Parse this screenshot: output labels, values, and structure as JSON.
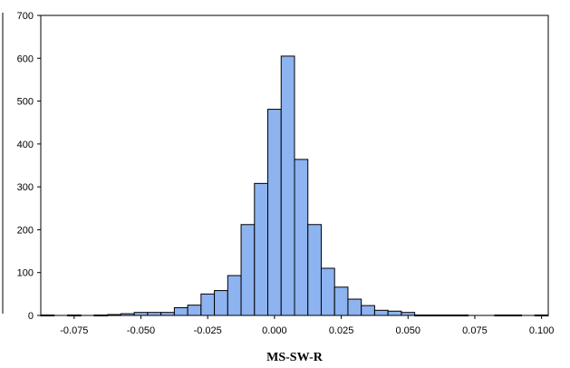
{
  "chart_data": {
    "type": "bar",
    "title": "",
    "xlabel": "MS-SW-R",
    "ylabel": "",
    "xlim": [
      -0.0875,
      0.1025
    ],
    "ylim": [
      0,
      700
    ],
    "bin_width": 0.005,
    "bar_color": "#8db3f0",
    "x_ticks": [
      "-0.075",
      "-0.050",
      "-0.025",
      "0.000",
      "0.025",
      "0.050",
      "0.075",
      "0.100"
    ],
    "x_tick_values": [
      -0.075,
      -0.05,
      -0.025,
      0.0,
      0.025,
      0.05,
      0.075,
      0.1
    ],
    "y_ticks": [
      "0",
      "100",
      "200",
      "300",
      "400",
      "500",
      "600",
      "700"
    ],
    "y_tick_values": [
      0,
      100,
      200,
      300,
      400,
      500,
      600,
      700
    ],
    "bins": [
      {
        "start": -0.0875,
        "value": 1
      },
      {
        "start": -0.0825,
        "value": 0
      },
      {
        "start": -0.0775,
        "value": 1
      },
      {
        "start": -0.0725,
        "value": 0
      },
      {
        "start": -0.0675,
        "value": 1
      },
      {
        "start": -0.0625,
        "value": 2
      },
      {
        "start": -0.0575,
        "value": 4
      },
      {
        "start": -0.0525,
        "value": 7
      },
      {
        "start": -0.0475,
        "value": 7
      },
      {
        "start": -0.0425,
        "value": 7
      },
      {
        "start": -0.0375,
        "value": 18
      },
      {
        "start": -0.0325,
        "value": 24
      },
      {
        "start": -0.0275,
        "value": 50
      },
      {
        "start": -0.0225,
        "value": 58
      },
      {
        "start": -0.0175,
        "value": 93
      },
      {
        "start": -0.0125,
        "value": 212
      },
      {
        "start": -0.0075,
        "value": 308
      },
      {
        "start": -0.0025,
        "value": 481
      },
      {
        "start": 0.0025,
        "value": 605
      },
      {
        "start": 0.0075,
        "value": 364
      },
      {
        "start": 0.0125,
        "value": 212
      },
      {
        "start": 0.0175,
        "value": 110
      },
      {
        "start": 0.0225,
        "value": 66
      },
      {
        "start": 0.0275,
        "value": 38
      },
      {
        "start": 0.0325,
        "value": 23
      },
      {
        "start": 0.0375,
        "value": 12
      },
      {
        "start": 0.0425,
        "value": 10
      },
      {
        "start": 0.0475,
        "value": 7
      },
      {
        "start": 0.0525,
        "value": 1
      },
      {
        "start": 0.0575,
        "value": 1
      },
      {
        "start": 0.0625,
        "value": 1
      },
      {
        "start": 0.0675,
        "value": 1
      },
      {
        "start": 0.0725,
        "value": 0
      },
      {
        "start": 0.0775,
        "value": 0
      },
      {
        "start": 0.0825,
        "value": 1
      },
      {
        "start": 0.0875,
        "value": 1
      },
      {
        "start": 0.0925,
        "value": 0
      },
      {
        "start": 0.0975,
        "value": 1
      }
    ]
  }
}
